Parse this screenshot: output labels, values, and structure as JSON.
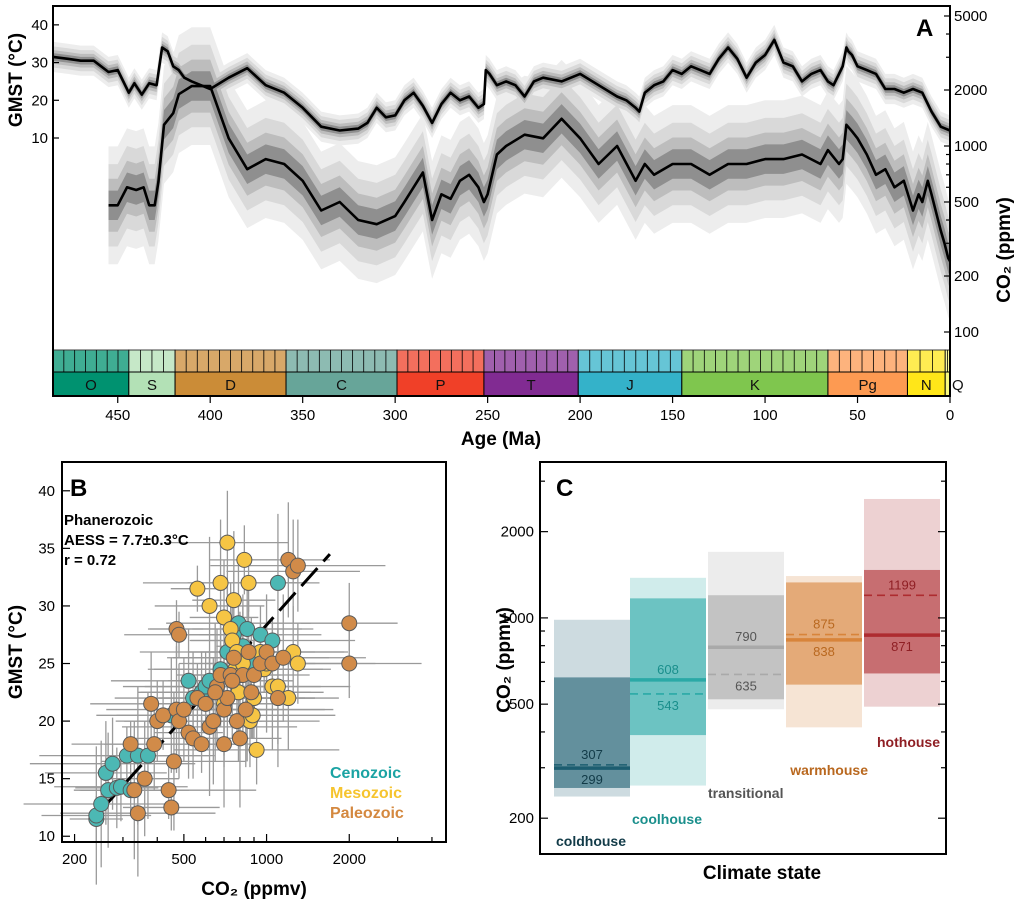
{
  "chart_data": [
    {
      "panel": "A",
      "type": "line",
      "xlabel": "Age (Ma)",
      "xlim": [
        485,
        0
      ],
      "x_ticks": [
        450,
        400,
        350,
        300,
        250,
        200,
        150,
        100,
        50,
        0
      ],
      "ylabel_left": "GMST (°C)",
      "ylim_left": [
        5,
        45
      ],
      "yticks_left": [
        10,
        20,
        30,
        40
      ],
      "ylabel_right": "CO₂ (ppmv)",
      "scale_right": "log",
      "yticks_right": [
        100,
        200,
        500,
        1000,
        2000,
        5000
      ],
      "series": [
        {
          "label": "GMST (°C)",
          "x": [
            485,
            477,
            470,
            463,
            455,
            450,
            447,
            444,
            441,
            437,
            433,
            429,
            426,
            423,
            420,
            417,
            414,
            410,
            400,
            390,
            380,
            370,
            360,
            350,
            340,
            330,
            320,
            315,
            310,
            305,
            300,
            295,
            290,
            285,
            280,
            275,
            270,
            265,
            260,
            255,
            252,
            251,
            249,
            245,
            240,
            235,
            230,
            225,
            220,
            210,
            200,
            190,
            180,
            175,
            170,
            168,
            165,
            160,
            155,
            150,
            145,
            140,
            135,
            130,
            125,
            120,
            115,
            110,
            105,
            100,
            95,
            90,
            85,
            80,
            75,
            70,
            66,
            63,
            60,
            58,
            56,
            55,
            53,
            50,
            45,
            40,
            35,
            30,
            25,
            20,
            15,
            10,
            5,
            0
          ],
          "values": [
            31.5,
            31,
            30.5,
            30.5,
            27.5,
            28,
            25,
            22,
            24.5,
            21.5,
            24.5,
            24,
            34,
            33,
            29,
            28,
            26,
            25,
            23,
            26,
            28.5,
            24,
            22,
            18,
            13,
            12,
            12.5,
            14,
            18,
            15.5,
            16,
            20,
            22,
            18.5,
            14,
            19,
            22,
            20,
            21,
            18,
            19,
            28,
            27,
            24,
            25,
            24,
            21,
            25,
            26,
            25,
            27,
            24,
            21,
            20,
            18,
            17,
            22,
            24,
            25,
            28,
            27,
            29,
            28,
            27,
            31,
            34,
            31,
            26,
            30,
            32,
            36,
            30,
            29,
            25,
            27,
            28,
            25,
            24,
            27,
            29,
            34,
            33,
            32,
            29,
            28,
            27,
            23,
            23,
            22,
            23,
            22,
            17,
            13,
            12
          ]
        },
        {
          "label": "CO₂ (ppmv)",
          "x": [
            455,
            450,
            445,
            440,
            436,
            433,
            430,
            428,
            425,
            420,
            417,
            410,
            400,
            390,
            380,
            370,
            360,
            350,
            340,
            330,
            320,
            310,
            300,
            295,
            290,
            285,
            280,
            275,
            270,
            265,
            260,
            255,
            252,
            250,
            245,
            240,
            230,
            220,
            210,
            200,
            190,
            180,
            170,
            165,
            160,
            150,
            140,
            130,
            120,
            110,
            100,
            90,
            80,
            70,
            66,
            60,
            58,
            56,
            53,
            50,
            45,
            40,
            35,
            30,
            25,
            20,
            17,
            15,
            12,
            10,
            5,
            3,
            1,
            0
          ],
          "values": [
            480,
            480,
            600,
            580,
            600,
            480,
            480,
            640,
            1300,
            1500,
            1900,
            2100,
            2100,
            1100,
            750,
            850,
            800,
            650,
            450,
            500,
            400,
            380,
            420,
            500,
            600,
            720,
            400,
            550,
            520,
            650,
            700,
            600,
            500,
            550,
            900,
            1000,
            1150,
            1100,
            1400,
            1100,
            800,
            1000,
            650,
            800,
            700,
            800,
            800,
            700,
            800,
            800,
            850,
            850,
            900,
            800,
            950,
            800,
            850,
            1300,
            1200,
            1100,
            900,
            700,
            750,
            600,
            650,
            450,
            550,
            500,
            650,
            550,
            350,
            300,
            250,
            240
          ]
        }
      ],
      "periods": [
        {
          "label": "O",
          "start": 485,
          "end": 444,
          "color": "#009270"
        },
        {
          "label": "S",
          "start": 444,
          "end": 419,
          "color": "#b3e1b6"
        },
        {
          "label": "D",
          "start": 419,
          "end": 359,
          "color": "#cb8c37"
        },
        {
          "label": "C",
          "start": 359,
          "end": 299,
          "color": "#67a599"
        },
        {
          "label": "P",
          "start": 299,
          "end": 252,
          "color": "#f04028"
        },
        {
          "label": "T",
          "start": 252,
          "end": 201,
          "color": "#812b92"
        },
        {
          "label": "J",
          "start": 201,
          "end": 145,
          "color": "#34b2c9"
        },
        {
          "label": "K",
          "start": 145,
          "end": 66,
          "color": "#7fc64e"
        },
        {
          "label": "Pg",
          "start": 66,
          "end": 23,
          "color": "#fd9a52"
        },
        {
          "label": "N",
          "start": 23,
          "end": 2.6,
          "color": "#ffe619"
        },
        {
          "label": "Q",
          "start": 2.6,
          "end": 0,
          "color": "#f9f97f"
        }
      ]
    },
    {
      "panel": "B",
      "type": "scatter",
      "xlabel": "CO₂ (ppmv)",
      "ylabel": "GMST (°C)",
      "xscale": "log",
      "xlim": [
        180,
        4500
      ],
      "ylim": [
        9.5,
        42.5
      ],
      "xticks": [
        200,
        500,
        1000,
        2000
      ],
      "yticks": [
        10,
        15,
        20,
        25,
        30,
        35,
        40
      ],
      "annotation": [
        "Phanerozoic",
        "AESS = 7.7±0.3°C",
        "r = 0.72"
      ],
      "fit_line": {
        "x": [
          255,
          1700
        ],
        "y": [
          12.5,
          34.5
        ]
      },
      "legend": [
        {
          "label": "Cenozoic",
          "color": "#1aa3a3"
        },
        {
          "label": "Mesozoic",
          "color": "#f6c42e"
        },
        {
          "label": "Paleozoic",
          "color": "#d4883f"
        }
      ],
      "series": [
        {
          "name": "Cenozoic",
          "color": "#4cb8b4",
          "x": [
            240,
            240,
            250,
            265,
            260,
            275,
            285,
            295,
            310,
            320,
            340,
            370,
            450,
            520,
            540,
            580,
            600,
            620,
            680,
            720,
            760,
            790,
            820,
            850,
            880,
            900,
            950,
            1050,
            1100
          ],
          "y": [
            11.5,
            11.8,
            12.8,
            14.0,
            15.5,
            16.3,
            14.2,
            14.3,
            17.0,
            14.0,
            17.0,
            17.0,
            20.5,
            23.5,
            22.0,
            22.5,
            23.0,
            23.5,
            24.5,
            26.0,
            27.5,
            28.5,
            26.5,
            28.0,
            25.5,
            25.0,
            27.5,
            27.0,
            32.0
          ]
        },
        {
          "name": "Mesozoic",
          "color": "#f6c544",
          "x": [
            560,
            620,
            680,
            700,
            720,
            740,
            750,
            760,
            770,
            780,
            790,
            800,
            820,
            850,
            870,
            900,
            920,
            950,
            980,
            1000,
            1050,
            1100,
            1200,
            1250,
            1300,
            830,
            860,
            890,
            760,
            700
          ],
          "y": [
            31.5,
            30.0,
            32.0,
            29.0,
            35.5,
            28.0,
            27.0,
            25.5,
            24.5,
            26.0,
            22.5,
            24.0,
            25.0,
            21.0,
            20.0,
            22.0,
            17.5,
            26.0,
            24.5,
            25.0,
            23.0,
            23.0,
            22.0,
            26.0,
            25.0,
            34.0,
            32.0,
            20.5,
            30.5,
            21.5
          ]
        },
        {
          "name": "Paleozoic",
          "color": "#d18b49",
          "x": [
            320,
            330,
            340,
            360,
            380,
            390,
            400,
            420,
            440,
            450,
            460,
            470,
            480,
            500,
            520,
            540,
            560,
            580,
            600,
            620,
            640,
            660,
            680,
            700,
            720,
            740,
            760,
            780,
            800,
            820,
            840,
            860,
            880,
            900,
            950,
            1000,
            1050,
            1100,
            1150,
            1200,
            1250,
            1300,
            2000,
            2000,
            470,
            480,
            650,
            700,
            750
          ],
          "y": [
            18.0,
            14.0,
            12.0,
            15.0,
            21.5,
            18.0,
            20.0,
            20.5,
            14.0,
            12.5,
            16.5,
            21.0,
            20.0,
            21.0,
            19.0,
            18.5,
            22.0,
            18.0,
            21.5,
            19.5,
            20.0,
            23.0,
            24.0,
            21.0,
            22.0,
            24.0,
            25.5,
            20.0,
            18.5,
            24.0,
            21.0,
            26.0,
            22.5,
            24.0,
            25.0,
            26.0,
            25.0,
            22.0,
            25.5,
            34.0,
            33.0,
            33.5,
            28.5,
            25.0,
            28.0,
            27.5,
            22.5,
            18.0,
            23.5
          ]
        }
      ]
    },
    {
      "panel": "C",
      "type": "box",
      "xlabel": "Climate state",
      "ylabel": "CO₂ (ppmv)",
      "yscale": "log",
      "ylim": [
        150,
        3500
      ],
      "yticks": [
        200,
        500,
        1000,
        2000
      ],
      "categories": [
        "coldhouse",
        "coolhouse",
        "transitional",
        "warmhouse",
        "hothouse"
      ],
      "series": [
        {
          "name": "coldhouse",
          "color": "#1c5d70",
          "outer": [
            238,
            985
          ],
          "inner": [
            255,
            620
          ],
          "median": 299,
          "mean": 307
        },
        {
          "name": "coolhouse",
          "color": "#2aa9a6",
          "outer": [
            260,
            1380
          ],
          "inner": [
            390,
            1170
          ],
          "median": 608,
          "mean": 543
        },
        {
          "name": "transitional",
          "color": "#a9a9a9",
          "outer": [
            480,
            1700
          ],
          "inner": [
            520,
            1200
          ],
          "median": 790,
          "mean": 635
        },
        {
          "name": "warmhouse",
          "color": "#d8843a",
          "outer": [
            415,
            1400
          ],
          "inner": [
            585,
            1330
          ],
          "median": 838,
          "mean": 875
        },
        {
          "name": "hothouse",
          "color": "#ae2c30",
          "outer": [
            490,
            2600
          ],
          "inner": [
            640,
            1470
          ],
          "median": 871,
          "mean": 1199
        }
      ],
      "value_labels": {
        "coldhouse": [
          "307",
          "299"
        ],
        "coolhouse": [
          "608",
          "543"
        ],
        "transitional": [
          "790",
          "635"
        ],
        "warmhouse": [
          "875",
          "838"
        ],
        "hothouse": [
          "1199",
          "871"
        ]
      }
    }
  ]
}
